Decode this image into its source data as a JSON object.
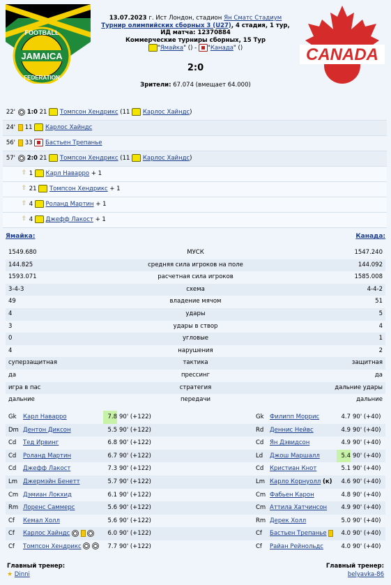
{
  "header": {
    "date": "13.07.2023",
    "location_text": "г. Ист Лондон, стадион",
    "stadium": "Ян Сматс Стадиум",
    "tournament": "Турнир олимпийских сборных 3 (U27)",
    "stage": ", 4 стадия, 1 тур,",
    "match_id_label": "ИД матча:",
    "match_id": "12370884",
    "round_line": "Коммерческие турниры сборных, 15 Тур",
    "home_team": "Ямайка",
    "away_team": "Канада",
    "home_rating": "()",
    "away_rating": "()",
    "dash": " - ",
    "score": "2:0",
    "attendance_label": "Зрители:",
    "attendance_value": "67.074 (вмещает 64.000)",
    "home_logo_top": "FOOTBALL",
    "home_logo_mid": "JAMAICA",
    "home_logo_bottom": "FEDERATION",
    "away_logo_text": "CANADA",
    "colors": {
      "home_green": "#1f8a3a",
      "home_gold": "#f4d000",
      "away_red": "#d62b2b"
    }
  },
  "events": [
    {
      "minute": "22'",
      "type": "goal",
      "score": "1:0",
      "num": "21",
      "player": "Томпсон Хендрикс",
      "assist_num": "11",
      "assist": "Карлос Хайндс",
      "team": "home"
    },
    {
      "minute": "24'",
      "type": "yellow",
      "num": "11",
      "player": "Карлос Хайндс",
      "team": "home"
    },
    {
      "minute": "56'",
      "type": "yellow",
      "num": "33",
      "player": "Бастьен Трепанье",
      "team": "away"
    },
    {
      "minute": "57'",
      "type": "goal",
      "score": "2:0",
      "num": "21",
      "player": "Томпсон Хендрикс",
      "assist_num": "11",
      "assist": "Карлос Хайндс",
      "team": "home"
    },
    {
      "type": "sub",
      "num": "1",
      "player": "Карл Наварро",
      "bonus": "+ 1"
    },
    {
      "type": "sub",
      "num": "21",
      "player": "Томпсон Хендрикс",
      "bonus": "+ 1"
    },
    {
      "type": "sub",
      "num": "4",
      "player": "Роланд Мартин",
      "bonus": "+ 1"
    },
    {
      "type": "sub",
      "num": "4",
      "player": "Джефф Лакост",
      "bonus": "+ 1"
    }
  ],
  "stats": {
    "home_team": "Ямайка:",
    "away_team": "Канада:",
    "rows": [
      {
        "label": "МУСК",
        "home": "1549.680",
        "away": "1547.240"
      },
      {
        "label": "средняя сила игроков на поле",
        "home": "144.825",
        "away": "144.092"
      },
      {
        "label": "расчетная сила игроков",
        "home": "1593.071",
        "away": "1585.008"
      },
      {
        "label": "схема",
        "home": "3-4-3",
        "away": "4-4-2"
      },
      {
        "label": "владение мячом",
        "home": "49",
        "away": "51"
      },
      {
        "label": "удары",
        "home": "4",
        "away": "5"
      },
      {
        "label": "удары в створ",
        "home": "3",
        "away": "4"
      },
      {
        "label": "угловые",
        "home": "0",
        "away": "1"
      },
      {
        "label": "нарушения",
        "home": "4",
        "away": "2"
      },
      {
        "label": "тактика",
        "home": "суперзащитная",
        "away": "защитная"
      },
      {
        "label": "прессинг",
        "home": "да",
        "away": "да"
      },
      {
        "label": "стратегия",
        "home": "игра в пас",
        "away": "дальние удары"
      },
      {
        "label": "передачи",
        "home": "дальние",
        "away": "дальние"
      }
    ]
  },
  "lineups": [
    {
      "home": {
        "pos": "Gk",
        "name": "Карл Наварро",
        "rating": "7.8",
        "mins": "90' (+122)",
        "hl": true
      },
      "away": {
        "pos": "Gk",
        "name": "Филипп Моррис",
        "rating": "4.7",
        "mins": "90' (+40)"
      }
    },
    {
      "home": {
        "pos": "Dm",
        "name": "Дентон Диксон",
        "rating": "5.5",
        "mins": "90' (+122)"
      },
      "away": {
        "pos": "Rd",
        "name": "Деннис Нейвс",
        "rating": "4.9",
        "mins": "90' (+40)"
      }
    },
    {
      "home": {
        "pos": "Cd",
        "name": "Тед Ирвинг",
        "rating": "6.8",
        "mins": "90' (+122)"
      },
      "away": {
        "pos": "Cd",
        "name": "Ян Дэвидсон",
        "rating": "4.9",
        "mins": "90' (+40)"
      }
    },
    {
      "home": {
        "pos": "Cd",
        "name": "Роланд Мартин",
        "rating": "6.7",
        "mins": "90' (+122)"
      },
      "away": {
        "pos": "Ld",
        "name": "Джош Маршалл",
        "rating": "5.4",
        "mins": "90' (+40)",
        "hl": true
      }
    },
    {
      "home": {
        "pos": "Cd",
        "name": "Джефф Лакост",
        "rating": "7.3",
        "mins": "90' (+122)"
      },
      "away": {
        "pos": "Cd",
        "name": "Кристиан Кнот",
        "rating": "5.1",
        "mins": "90' (+40)"
      }
    },
    {
      "home": {
        "pos": "Lm",
        "name": "Джермэйн Бенетт",
        "rating": "5.7",
        "mins": "90' (+122)"
      },
      "away": {
        "pos": "Lm",
        "name": "Карло Корнуолл",
        "captain": "(к)",
        "rating": "4.6",
        "mins": "90' (+40)"
      }
    },
    {
      "home": {
        "pos": "Cm",
        "name": "Дэмиан Локхид",
        "rating": "6.1",
        "mins": "90' (+122)"
      },
      "away": {
        "pos": "Cm",
        "name": "Фабьен Карон",
        "rating": "4.8",
        "mins": "90' (+40)"
      }
    },
    {
      "home": {
        "pos": "Rm",
        "name": "Лоренс Саммерс",
        "rating": "5.6",
        "mins": "90' (+122)"
      },
      "away": {
        "pos": "Cm",
        "name": "Аттила Хатчинсон",
        "rating": "4.9",
        "mins": "90' (+40)"
      }
    },
    {
      "home": {
        "pos": "Cf",
        "name": "Кемал Холл",
        "rating": "5.6",
        "mins": "90' (+122)"
      },
      "away": {
        "pos": "Rm",
        "name": "Дерек Холл",
        "rating": "5.0",
        "mins": "90' (+40)"
      }
    },
    {
      "home": {
        "pos": "Cf",
        "name": "Карлос Хайндс",
        "rating": "6.0",
        "mins": "90' (+122)",
        "icons": [
          "ball",
          "yellow",
          "ball"
        ]
      },
      "away": {
        "pos": "Cf",
        "name": "Бастьен Трепанье",
        "rating": "4.0",
        "mins": "90' (+40)",
        "icons": [
          "yellow"
        ]
      }
    },
    {
      "home": {
        "pos": "Cf",
        "name": "Томпсон Хендрикс",
        "rating": "7.7",
        "mins": "90' (+122)",
        "icons": [
          "ball",
          "ball"
        ]
      },
      "away": {
        "pos": "Cf",
        "name": "Райан Рейнольдс",
        "rating": "4.0",
        "mins": "90' (+40)"
      }
    }
  ],
  "coaches": {
    "home_title": "Главный тренер:",
    "home_name": "Dinni",
    "away_title": "Главный тренер:",
    "away_name": "belyavka-86"
  }
}
